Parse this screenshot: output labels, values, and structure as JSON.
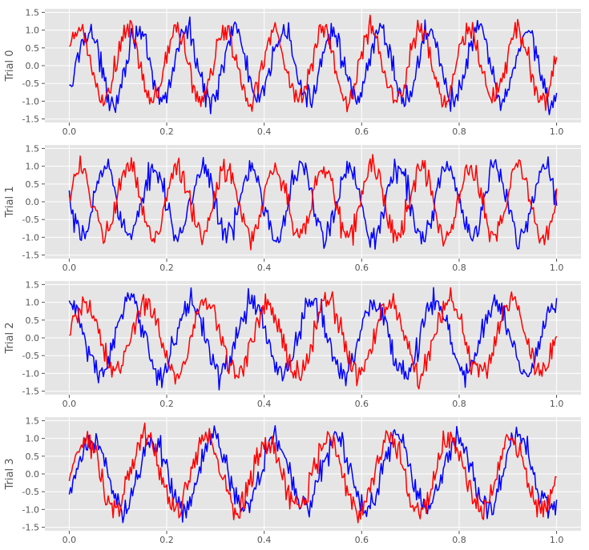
{
  "chart_data": [
    {
      "type": "line",
      "ylabel": "Trial 0",
      "xlim": [
        -0.05,
        1.05
      ],
      "ylim": [
        -1.6,
        1.6
      ],
      "xticks": [
        "0.0",
        "0.2",
        "0.4",
        "0.6",
        "0.8",
        "1.0"
      ],
      "yticks": [
        "1.5",
        "1.0",
        "0.5",
        "0.0",
        "-0.5",
        "-1.0",
        "-1.5"
      ],
      "grid": true,
      "series": [
        {
          "color": "#0000ff",
          "model": {
            "amplitude": 1.0,
            "cycles": 10,
            "phase": -0.9,
            "noise": 0.18
          }
        },
        {
          "color": "#ff0000",
          "model": {
            "amplitude": 1.0,
            "cycles": 10,
            "phase": 0.3,
            "noise": 0.18
          }
        }
      ]
    },
    {
      "type": "line",
      "ylabel": "Trial 1",
      "xlim": [
        -0.05,
        1.05
      ],
      "ylim": [
        -1.6,
        1.6
      ],
      "xticks": [
        "0.0",
        "0.2",
        "0.4",
        "0.6",
        "0.8",
        "1.0"
      ],
      "yticks": [
        "1.5",
        "1.0",
        "0.5",
        "0.0",
        "-0.5",
        "-1.0",
        "-1.5"
      ],
      "grid": true,
      "series": [
        {
          "color": "#0000ff",
          "model": {
            "amplitude": 1.0,
            "cycles": 10,
            "phase": 3.14,
            "noise": 0.18
          }
        },
        {
          "color": "#ff0000",
          "model": {
            "amplitude": 1.0,
            "cycles": 10,
            "phase": 0.2,
            "noise": 0.18
          }
        }
      ]
    },
    {
      "type": "line",
      "ylabel": "Trial 2",
      "xlim": [
        -0.05,
        1.05
      ],
      "ylim": [
        -1.6,
        1.6
      ],
      "xticks": [
        "0.0",
        "0.2",
        "0.4",
        "0.6",
        "0.8",
        "1.0"
      ],
      "yticks": [
        "1.5",
        "1.0",
        "0.5",
        "0.0",
        "-0.5",
        "-1.0",
        "-1.5"
      ],
      "grid": true,
      "series": [
        {
          "color": "#0000ff",
          "model": {
            "amplitude": 1.0,
            "cycles": 8,
            "phase": 1.57,
            "noise": 0.18
          }
        },
        {
          "color": "#ff0000",
          "model": {
            "amplitude": 1.0,
            "cycles": 8,
            "phase": 0.0,
            "noise": 0.18
          }
        }
      ]
    },
    {
      "type": "line",
      "ylabel": "Trial 3",
      "xlim": [
        -0.05,
        1.05
      ],
      "ylim": [
        -1.6,
        1.6
      ],
      "xticks": [
        "0.0",
        "0.2",
        "0.4",
        "0.6",
        "0.8",
        "1.0"
      ],
      "yticks": [
        "1.5",
        "1.0",
        "0.5",
        "0.0",
        "-0.5",
        "-1.0",
        "-1.5"
      ],
      "grid": true,
      "series": [
        {
          "color": "#0000ff",
          "model": {
            "amplitude": 1.0,
            "cycles": 8,
            "phase": -0.8,
            "noise": 0.18
          }
        },
        {
          "color": "#ff0000",
          "model": {
            "amplitude": 1.0,
            "cycles": 8,
            "phase": 0.0,
            "noise": 0.18
          }
        }
      ]
    }
  ]
}
